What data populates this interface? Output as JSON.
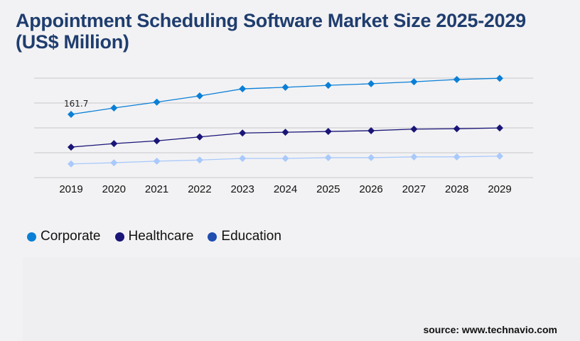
{
  "title": "Appointment Scheduling Software Market Size 2025-2029 (US$ Million)",
  "source": "source: www.technavio.com",
  "chart_data": {
    "type": "line",
    "title": "Appointment Scheduling Software Market Size 2025-2029 (US$ Million)",
    "categories": [
      "2019",
      "2020",
      "2021",
      "2022",
      "2023",
      "2024",
      "2025",
      "2026",
      "2027",
      "2028",
      "2029"
    ],
    "ylim": [
      0,
      318
    ],
    "grid": true,
    "legend_position": "bottom-left",
    "data_labels": [
      {
        "series": "Corporate",
        "category": "2019",
        "text": "161.7"
      }
    ],
    "series": [
      {
        "name": "Corporate",
        "color": "#0a7fd6",
        "legend_color": "#0a7fd6",
        "values": [
          161.7,
          178,
          193,
          209,
          227,
          231,
          236,
          240,
          245,
          251,
          254
        ]
      },
      {
        "name": "Healthcare",
        "color": "#1a1577",
        "legend_color": "#1a1577",
        "values": [
          78,
          87,
          94,
          104,
          114,
          116,
          118,
          120,
          124,
          125,
          127
        ]
      },
      {
        "name": "Education",
        "color": "#a9c9fb",
        "legend_color": "#1f4db0",
        "values": [
          35,
          38,
          42,
          45,
          49,
          49,
          51,
          51,
          53,
          53,
          55
        ]
      }
    ]
  }
}
